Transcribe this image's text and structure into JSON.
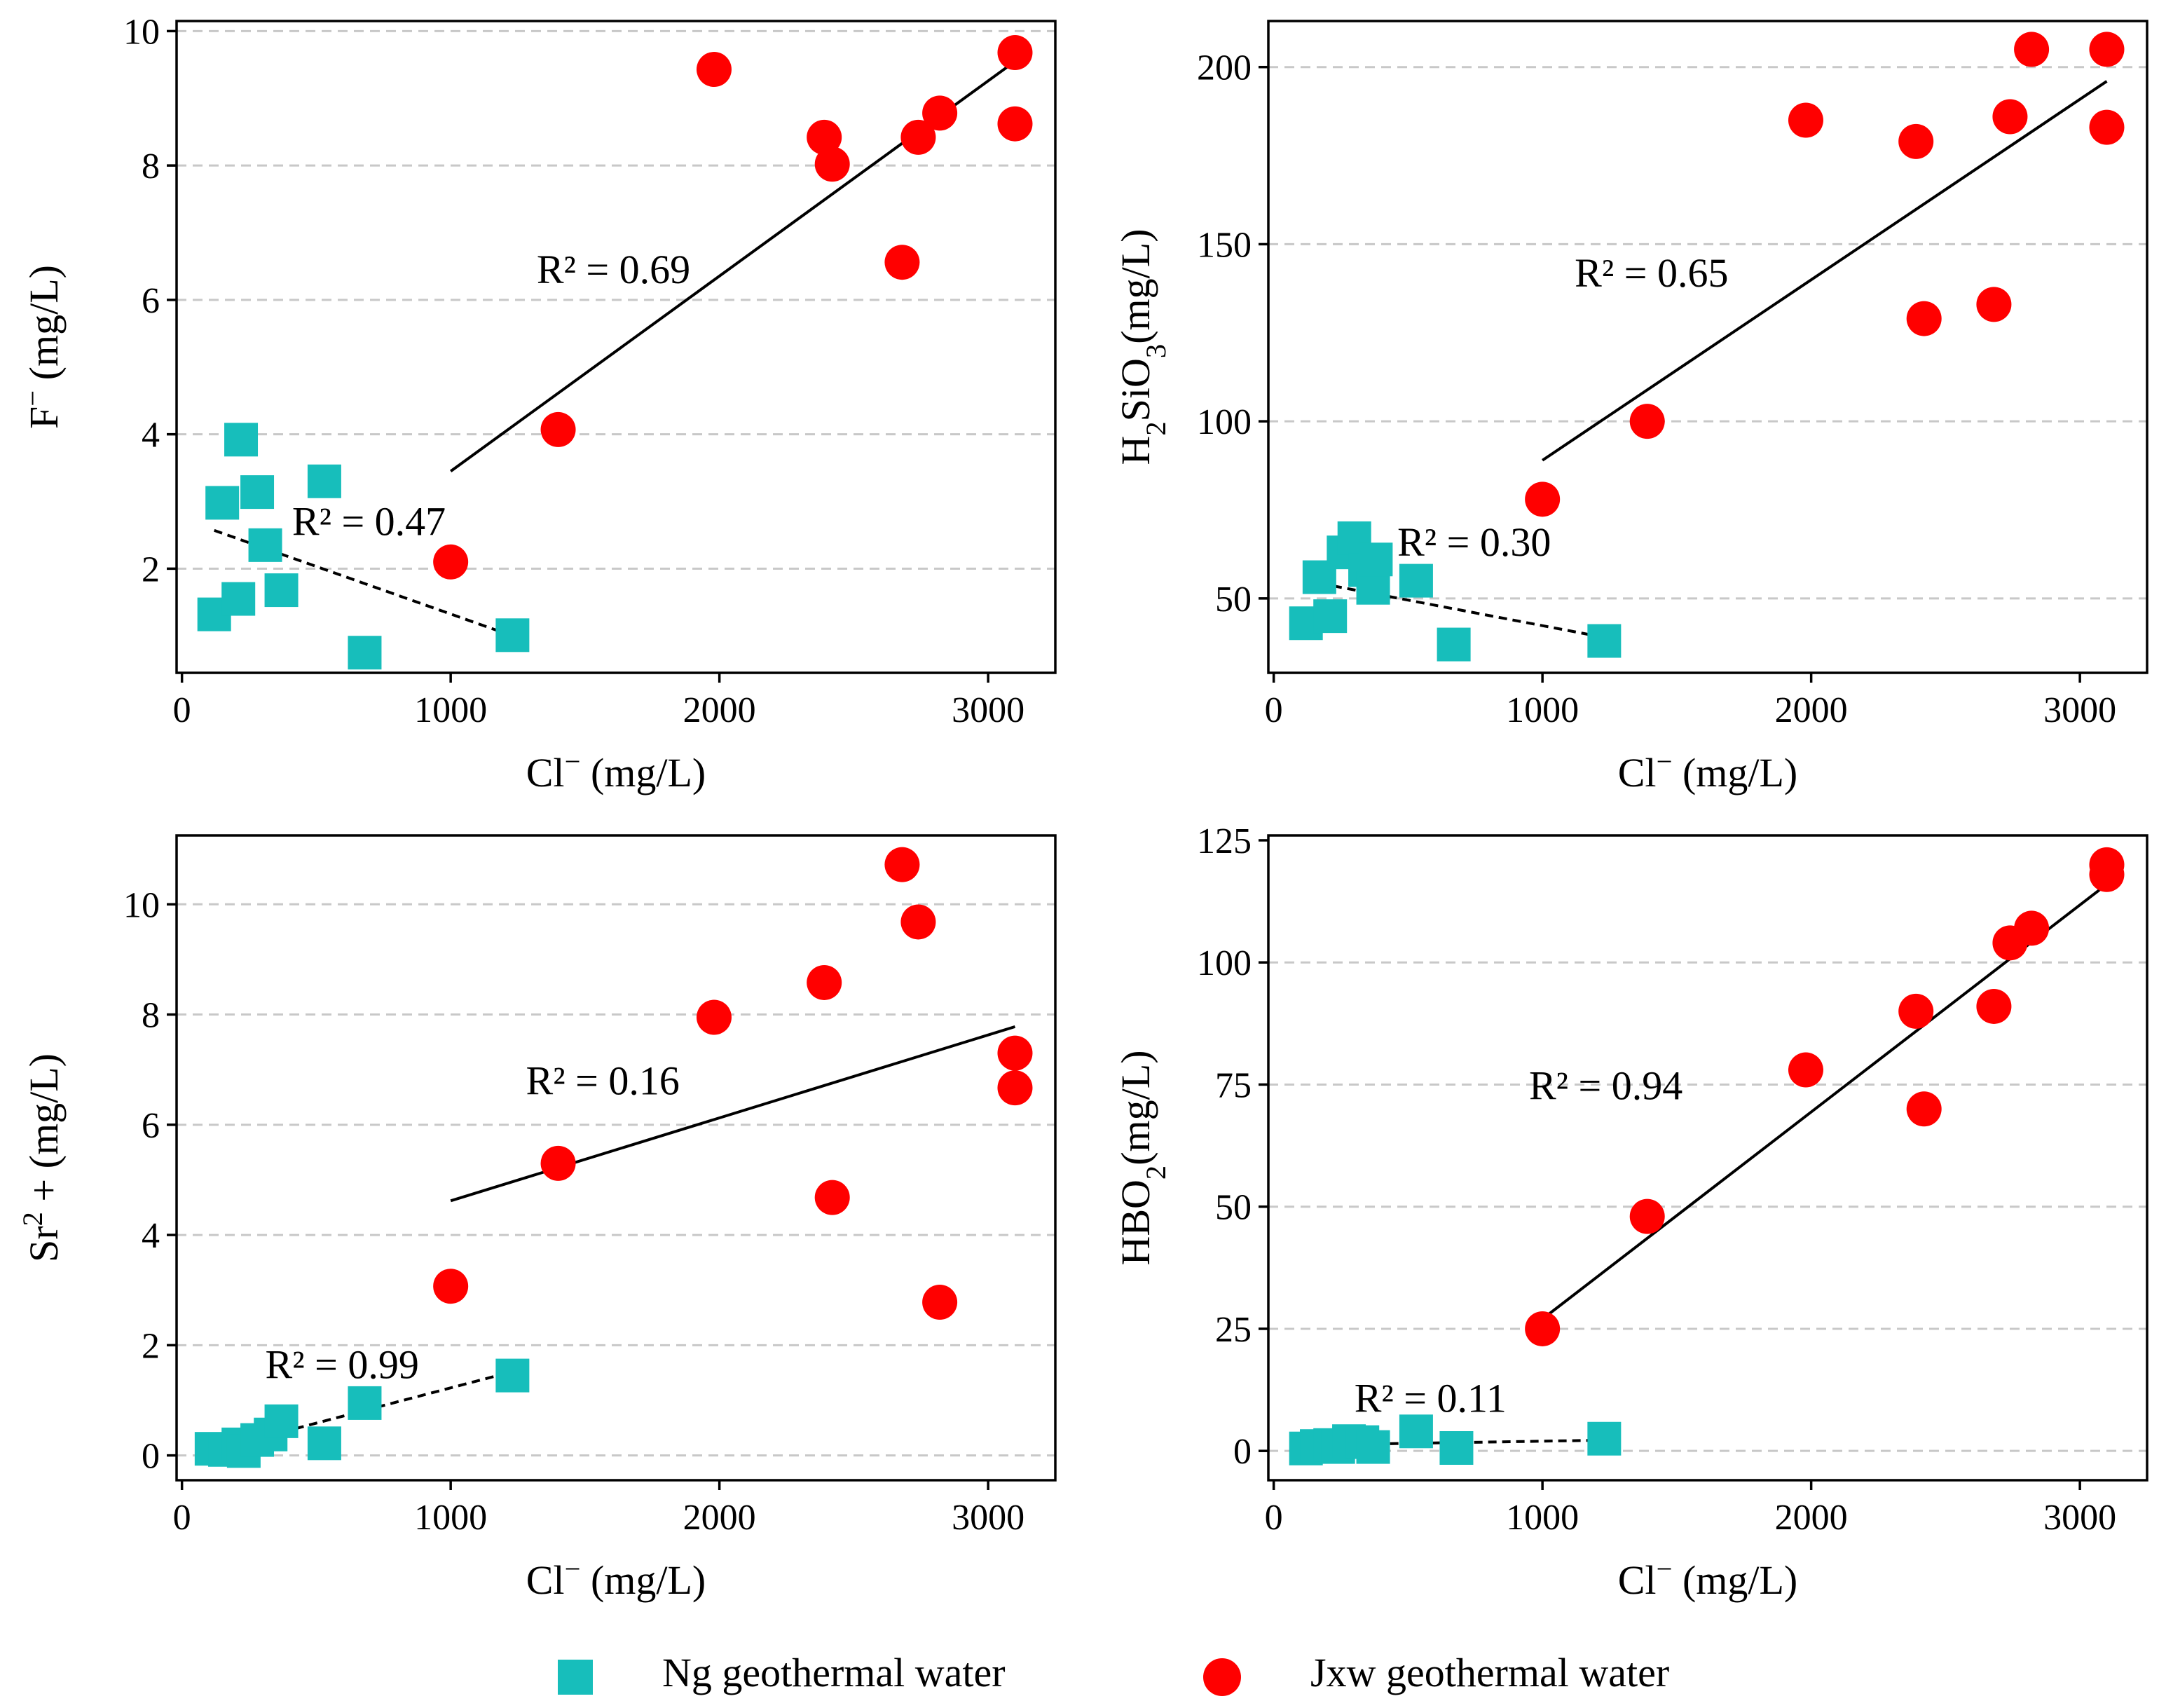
{
  "colors": {
    "ng": "#17bebb",
    "jxw": "#ff0000",
    "grid": "#c8c8c8",
    "axis": "#000000"
  },
  "legend": {
    "ng_label": "Ng geothermal water",
    "jxw_label": "Jxw geothermal water"
  },
  "chart_data": [
    {
      "type": "scatter",
      "id": "f",
      "ylabel_html": "F<tspan baseline-shift=\"super\" font-size=\"70%\">−</tspan> (mg/L)",
      "xlabel_html": "Cl<tspan baseline-shift=\"super\" font-size=\"70%\">−</tspan> (mg/L)",
      "xlim": [
        -20,
        3250
      ],
      "ylim": [
        0.45,
        10.15
      ],
      "xticks": [
        0,
        1000,
        2000,
        3000
      ],
      "yticks": [
        2,
        4,
        6,
        8,
        10
      ],
      "grid_y": [
        2,
        4,
        6,
        8,
        10
      ],
      "series": [
        {
          "name": "Ng geothermal water",
          "marker": "square",
          "points": [
            [
              120,
              1.32
            ],
            [
              150,
              2.98
            ],
            [
              210,
              1.55
            ],
            [
              220,
              3.92
            ],
            [
              280,
              3.14
            ],
            [
              310,
              2.35
            ],
            [
              370,
              1.68
            ],
            [
              530,
              3.3
            ],
            [
              680,
              0.75
            ],
            [
              1230,
              1.01
            ]
          ]
        },
        {
          "name": "Jxw geothermal water",
          "marker": "circle",
          "points": [
            [
              1000,
              2.1
            ],
            [
              1400,
              4.07
            ],
            [
              1980,
              9.43
            ],
            [
              2390,
              8.42
            ],
            [
              2420,
              8.02
            ],
            [
              2680,
              6.56
            ],
            [
              2740,
              8.42
            ],
            [
              2820,
              8.78
            ],
            [
              3100,
              9.68
            ],
            [
              3100,
              8.62
            ]
          ]
        }
      ],
      "fits": [
        {
          "series": "Ng geothermal water",
          "style": "dashed",
          "x": [
            120,
            1230
          ],
          "y": [
            2.57,
            1.0
          ],
          "r2_label": "R² = 0.47",
          "r2_at": [
            410,
            2.5
          ]
        },
        {
          "series": "Jxw geothermal water",
          "style": "solid",
          "x": [
            1000,
            3100
          ],
          "y": [
            3.45,
            9.55
          ],
          "r2_label": "R² = 0.69",
          "r2_at": [
            1320,
            6.25
          ]
        }
      ]
    },
    {
      "type": "scatter",
      "id": "h2sio3",
      "ylabel_html": "H<tspan baseline-shift=\"sub\" font-size=\"70%\">2</tspan>SiO<tspan baseline-shift=\"sub\" font-size=\"70%\">3</tspan>(mg/L)",
      "xlabel_html": "Cl<tspan baseline-shift=\"super\" font-size=\"70%\">−</tspan> (mg/L)",
      "xlim": [
        -20,
        3250
      ],
      "ylim": [
        29,
        213
      ],
      "xticks": [
        0,
        1000,
        2000,
        3000
      ],
      "yticks": [
        50,
        100,
        150,
        200
      ],
      "grid_y": [
        50,
        100,
        150,
        200
      ],
      "series": [
        {
          "name": "Ng geothermal water",
          "marker": "square",
          "points": [
            [
              120,
              43
            ],
            [
              170,
              56
            ],
            [
              210,
              45
            ],
            [
              260,
              63
            ],
            [
              300,
              67
            ],
            [
              340,
              58
            ],
            [
              370,
              53
            ],
            [
              380,
              61
            ],
            [
              530,
              55
            ],
            [
              670,
              37
            ],
            [
              1230,
              38
            ]
          ]
        },
        {
          "name": "Jxw geothermal water",
          "marker": "circle",
          "points": [
            [
              1000,
              78
            ],
            [
              1390,
              100
            ],
            [
              1980,
              185
            ],
            [
              2390,
              179
            ],
            [
              2420,
              129
            ],
            [
              2680,
              133
            ],
            [
              2740,
              186
            ],
            [
              2820,
              205
            ],
            [
              3100,
              205
            ],
            [
              3100,
              183
            ]
          ]
        }
      ],
      "fits": [
        {
          "series": "Ng geothermal water",
          "style": "dashed",
          "x": [
            120,
            1230
          ],
          "y": [
            55,
            39
          ],
          "r2_label": "R² = 0.30",
          "r2_at": [
            460,
            62
          ]
        },
        {
          "series": "Jxw geothermal water",
          "style": "solid",
          "x": [
            1000,
            3100
          ],
          "y": [
            89,
            196
          ],
          "r2_label": "R² = 0.65",
          "r2_at": [
            1120,
            138
          ]
        }
      ]
    },
    {
      "type": "scatter",
      "id": "sr",
      "ylabel_html": "Sr<tspan baseline-shift=\"super\" font-size=\"70%\">2</tspan> + (mg/L)",
      "xlabel_html": "Cl<tspan baseline-shift=\"super\" font-size=\"70%\">−</tspan> (mg/L)",
      "xlim": [
        -20,
        3250
      ],
      "ylim": [
        -0.45,
        11.25
      ],
      "xticks": [
        0,
        1000,
        2000,
        3000
      ],
      "yticks": [
        0,
        2,
        4,
        6,
        8,
        10
      ],
      "grid_y": [
        0,
        2,
        4,
        6,
        8,
        10
      ],
      "series": [
        {
          "name": "Ng geothermal water",
          "marker": "square",
          "points": [
            [
              110,
              0.12
            ],
            [
              160,
              0.1
            ],
            [
              210,
              0.2
            ],
            [
              230,
              0.08
            ],
            [
              280,
              0.28
            ],
            [
              330,
              0.38
            ],
            [
              370,
              0.62
            ],
            [
              530,
              0.22
            ],
            [
              680,
              0.95
            ],
            [
              1230,
              1.45
            ]
          ]
        },
        {
          "name": "Jxw geothermal water",
          "marker": "circle",
          "points": [
            [
              1000,
              3.07
            ],
            [
              1400,
              5.3
            ],
            [
              1980,
              7.95
            ],
            [
              2390,
              8.58
            ],
            [
              2420,
              4.68
            ],
            [
              2680,
              10.72
            ],
            [
              2740,
              9.68
            ],
            [
              2820,
              2.78
            ],
            [
              3100,
              7.3
            ],
            [
              3100,
              6.67
            ]
          ]
        }
      ],
      "fits": [
        {
          "series": "Ng geothermal water",
          "style": "dashed",
          "x": [
            120,
            1230
          ],
          "y": [
            0.1,
            1.52
          ],
          "r2_label": "R² = 0.99",
          "r2_at": [
            310,
            1.4
          ]
        },
        {
          "series": "Jxw geothermal water",
          "style": "solid",
          "x": [
            1000,
            3100
          ],
          "y": [
            4.62,
            7.78
          ],
          "r2_label": "R² = 0.16",
          "r2_at": [
            1280,
            6.55
          ]
        }
      ]
    },
    {
      "type": "scatter",
      "id": "hbo2",
      "ylabel_html": "HBO<tspan baseline-shift=\"sub\" font-size=\"70%\">2</tspan>(mg/L)",
      "xlabel_html": "Cl<tspan baseline-shift=\"super\" font-size=\"70%\">−</tspan> (mg/L)",
      "xlim": [
        -20,
        3250
      ],
      "ylim": [
        -6,
        126
      ],
      "xticks": [
        0,
        1000,
        2000,
        3000
      ],
      "yticks": [
        0,
        25,
        50,
        75,
        100,
        125
      ],
      "grid_y": [
        0,
        25,
        50,
        75,
        100
      ],
      "series": [
        {
          "name": "Ng geothermal water",
          "marker": "square",
          "points": [
            [
              120,
              0.5
            ],
            [
              160,
              1
            ],
            [
              210,
              1.2
            ],
            [
              240,
              0.8
            ],
            [
              280,
              2
            ],
            [
              330,
              1.8
            ],
            [
              370,
              0.8
            ],
            [
              530,
              4
            ],
            [
              680,
              0.6
            ],
            [
              1230,
              2.5
            ]
          ]
        },
        {
          "name": "Jxw geothermal water",
          "marker": "circle",
          "points": [
            [
              1000,
              25
            ],
            [
              1390,
              48
            ],
            [
              1980,
              78
            ],
            [
              2390,
              90
            ],
            [
              2420,
              70
            ],
            [
              2680,
              91
            ],
            [
              2740,
              104
            ],
            [
              2820,
              107
            ],
            [
              3100,
              120
            ],
            [
              3100,
              118
            ]
          ]
        }
      ],
      "fits": [
        {
          "series": "Ng geothermal water",
          "style": "dashed",
          "x": [
            120,
            1230
          ],
          "y": [
            1.2,
            2.2
          ],
          "r2_label": "R² = 0.11",
          "r2_at": [
            300,
            8
          ]
        },
        {
          "series": "Jxw geothermal water",
          "style": "solid",
          "x": [
            1000,
            3100
          ],
          "y": [
            27,
            116
          ],
          "r2_label": "R² = 0.94",
          "r2_at": [
            950,
            72
          ]
        }
      ]
    }
  ]
}
